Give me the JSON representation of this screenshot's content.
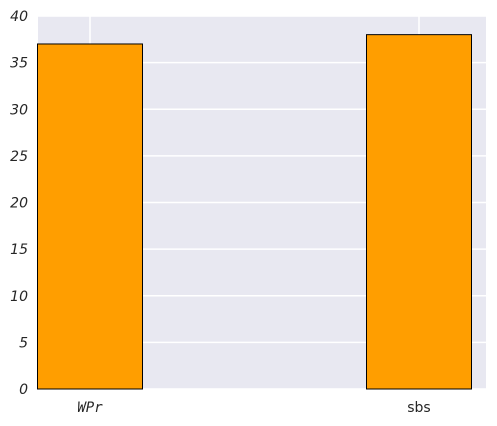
{
  "chart_data": {
    "type": "bar",
    "title": "",
    "xlabel": "",
    "ylabel": "",
    "categories": [
      "WPr",
      "sbs"
    ],
    "values": [
      37,
      38
    ],
    "ylim": [
      0,
      40
    ],
    "yticks": [
      "0",
      "5",
      "10",
      "15",
      "20",
      "25",
      "30",
      "35",
      "40"
    ],
    "grid": true,
    "legend": "none",
    "bar_color": "#ff9e00",
    "background_color": "#e8e8f1"
  }
}
